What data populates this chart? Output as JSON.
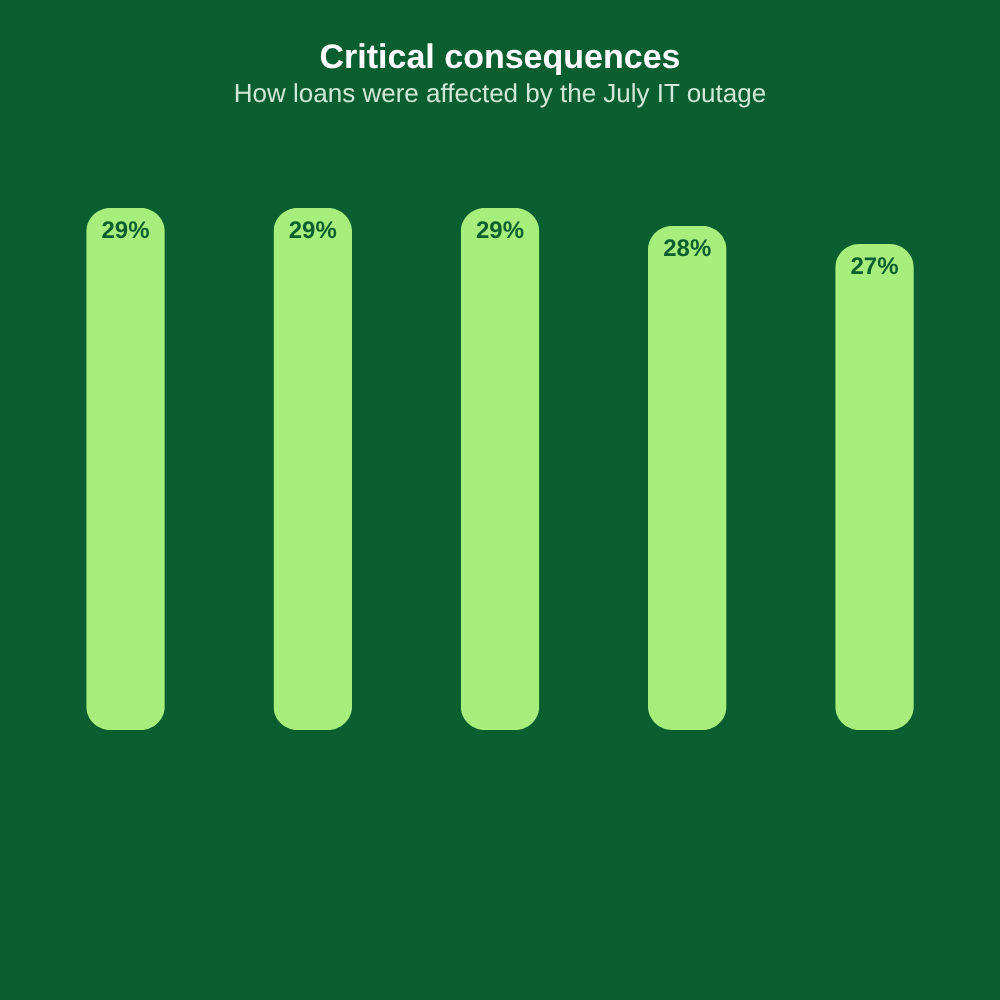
{
  "chart_data": {
    "type": "bar",
    "title": "Critical consequences",
    "subtitle": "How loans were affected by the July IT outage",
    "categories": [
      null,
      null,
      null,
      null,
      null
    ],
    "values": [
      29,
      29,
      29,
      28,
      27
    ],
    "value_labels": [
      "29%",
      "29%",
      "29%",
      "28%",
      "27%"
    ],
    "color": "#a6ef7c"
  }
}
